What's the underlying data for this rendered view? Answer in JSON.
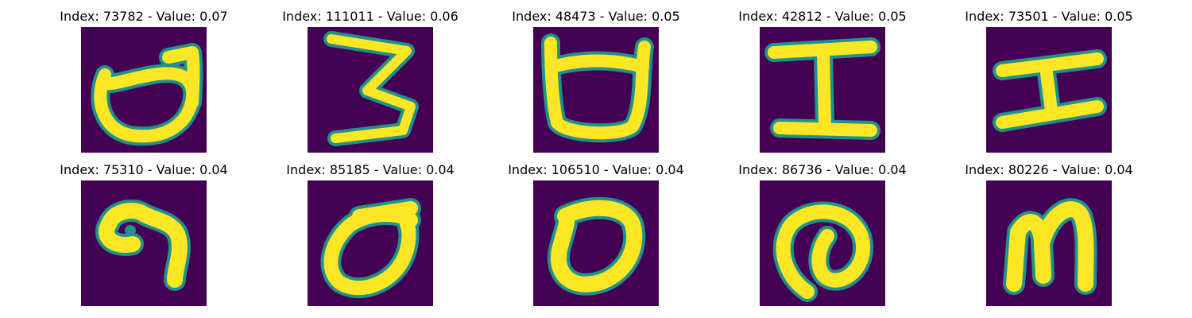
{
  "panels": [
    {
      "title": "Index: 73782 - Value: 0.07",
      "image_desc": "handwritten glyph resembling an open loop with a tall right stroke"
    },
    {
      "title": "Index: 111011 - Value: 0.06",
      "image_desc": "handwritten glyph resembling a zigzag three"
    },
    {
      "title": "Index: 48473 - Value: 0.05",
      "image_desc": "handwritten glyph resembling a cup with two horns"
    },
    {
      "title": "Index: 42812 - Value: 0.05",
      "image_desc": "handwritten glyph resembling a capital I"
    },
    {
      "title": "Index: 73501 - Value: 0.05",
      "image_desc": "handwritten glyph resembling a tilted capital I"
    },
    {
      "title": "Index: 75310 - Value: 0.04",
      "image_desc": "handwritten glyph with a dot and a hooked tail"
    },
    {
      "title": "Index: 85185 - Value: 0.04",
      "image_desc": "handwritten glyph resembling a zero with a top bar"
    },
    {
      "title": "Index: 106510 - Value: 0.04",
      "image_desc": "handwritten glyph resembling a zero"
    },
    {
      "title": "Index: 86736 - Value: 0.04",
      "image_desc": "handwritten glyph resembling an at-sign spiral"
    },
    {
      "title": "Index: 80226 - Value: 0.04",
      "image_desc": "handwritten glyph resembling a lowercase m"
    }
  ],
  "colors": {
    "background": "#440154",
    "stroke": "#fde725",
    "edge": "#21918c"
  }
}
